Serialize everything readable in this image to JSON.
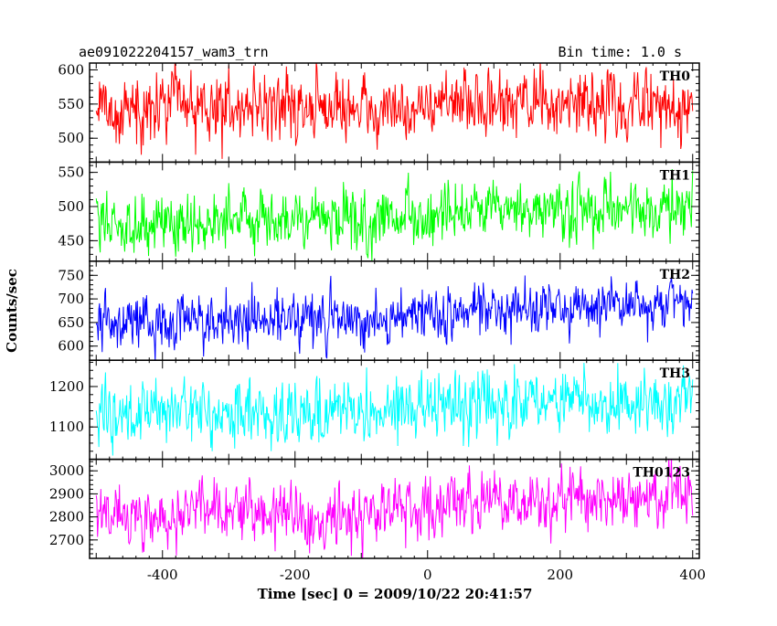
{
  "header": {
    "title": "ae091022204157_wam3_trn",
    "bin_time": "Bin time: 1.0 s"
  },
  "chart_data": {
    "type": "line",
    "title": "ae091022204157_wam3_trn",
    "subtitle": "Bin time: 1.0 s",
    "xlabel": "Time [sec] 0 = 2009/10/22 20:41:57",
    "ylabel": "Counts/sec",
    "xlim": [
      -510,
      410
    ],
    "x_ticks": [
      -400,
      -200,
      0,
      200,
      400
    ],
    "x_range_data": [
      -500,
      400
    ],
    "panels": [
      {
        "name": "TH0",
        "color": "#ff0000",
        "ylim": [
          465,
          610
        ],
        "y_ticks": [
          500,
          550,
          600
        ],
        "start_level": 545,
        "end_level": 552,
        "noise": 24
      },
      {
        "name": "TH1",
        "color": "#00ff00",
        "ylim": [
          420,
          565
        ],
        "y_ticks": [
          450,
          500,
          550
        ],
        "start_level": 478,
        "end_level": 500,
        "noise": 22
      },
      {
        "name": "TH2",
        "color": "#0000ff",
        "ylim": [
          570,
          780
        ],
        "y_ticks": [
          600,
          650,
          700,
          750
        ],
        "start_level": 652,
        "end_level": 700,
        "noise": 28
      },
      {
        "name": "TH3",
        "color": "#00ffff",
        "ylim": [
          1020,
          1265
        ],
        "y_ticks": [
          1100,
          1200
        ],
        "start_level": 1130,
        "end_level": 1180,
        "noise": 38
      },
      {
        "name": "TH0123",
        "color": "#ff00ff",
        "ylim": [
          2620,
          3050
        ],
        "y_ticks": [
          2700,
          2800,
          2900,
          3000
        ],
        "start_level": 2805,
        "end_level": 2910,
        "noise": 65
      }
    ]
  }
}
